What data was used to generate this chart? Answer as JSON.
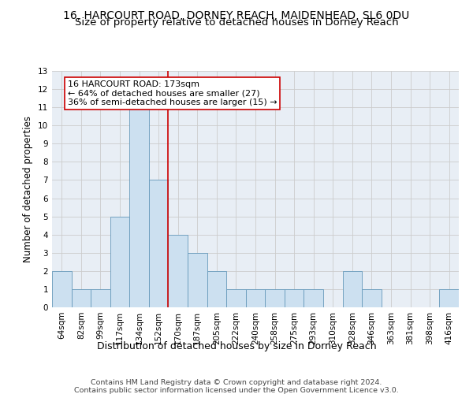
{
  "title": "16, HARCOURT ROAD, DORNEY REACH, MAIDENHEAD, SL6 0DU",
  "subtitle": "Size of property relative to detached houses in Dorney Reach",
  "xlabel": "Distribution of detached houses by size in Dorney Reach",
  "ylabel": "Number of detached properties",
  "categories": [
    "64sqm",
    "82sqm",
    "99sqm",
    "117sqm",
    "134sqm",
    "152sqm",
    "170sqm",
    "187sqm",
    "205sqm",
    "222sqm",
    "240sqm",
    "258sqm",
    "275sqm",
    "293sqm",
    "310sqm",
    "328sqm",
    "346sqm",
    "363sqm",
    "381sqm",
    "398sqm",
    "416sqm"
  ],
  "values": [
    2,
    1,
    1,
    5,
    11,
    7,
    4,
    3,
    2,
    1,
    1,
    1,
    1,
    1,
    0,
    2,
    1,
    0,
    0,
    0,
    1
  ],
  "bar_color": "#cce0f0",
  "bar_edge_color": "#6699bb",
  "grid_color": "#cccccc",
  "annotation_box_color": "#cc0000",
  "vline_color": "#cc0000",
  "vline_position": 5.5,
  "annotation_line1": "16 HARCOURT ROAD: 173sqm",
  "annotation_line2": "← 64% of detached houses are smaller (27)",
  "annotation_line3": "36% of semi-detached houses are larger (15) →",
  "footer1": "Contains HM Land Registry data © Crown copyright and database right 2024.",
  "footer2": "Contains public sector information licensed under the Open Government Licence v3.0.",
  "ylim": [
    0,
    13
  ],
  "yticks": [
    0,
    1,
    2,
    3,
    4,
    5,
    6,
    7,
    8,
    9,
    10,
    11,
    12,
    13
  ],
  "bg_color": "#e8eef5",
  "title_fontsize": 10,
  "subtitle_fontsize": 9.5,
  "xlabel_fontsize": 9,
  "ylabel_fontsize": 8.5,
  "tick_fontsize": 7.5,
  "annotation_fontsize": 8,
  "footer_fontsize": 6.8
}
